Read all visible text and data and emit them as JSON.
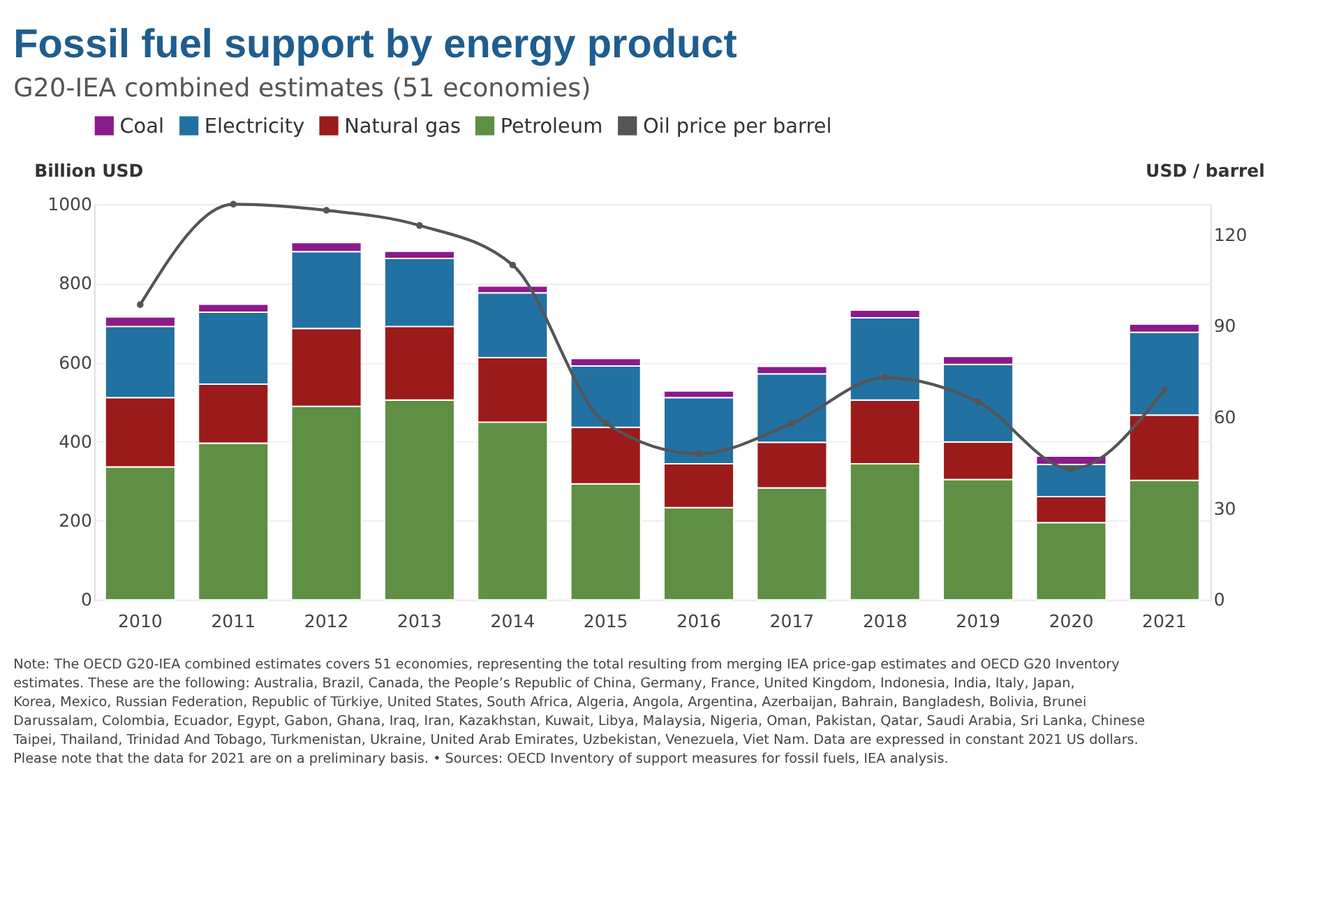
{
  "chart_data": {
    "type": "bar",
    "title": "Fossil fuel support by energy product",
    "subtitle": "G20-IEA combined estimates (51 economies)",
    "ylabel": "Billion USD",
    "y2label": "USD / barrel",
    "categories": [
      "2010",
      "2011",
      "2012",
      "2013",
      "2014",
      "2015",
      "2016",
      "2017",
      "2018",
      "2019",
      "2020",
      "2021"
    ],
    "stacked": true,
    "series": [
      {
        "name": "Petroleum",
        "color": "#5f8f45",
        "values": [
          336,
          396,
          489,
          505,
          449,
          293,
          233,
          283,
          344,
          304,
          195,
          302
        ]
      },
      {
        "name": "Natural gas",
        "color": "#9b1b1b",
        "values": [
          175,
          149,
          197,
          186,
          163,
          143,
          111,
          115,
          161,
          95,
          66,
          165
        ]
      },
      {
        "name": "Electricity",
        "color": "#2271a3",
        "values": [
          180,
          182,
          194,
          172,
          164,
          155,
          167,
          173,
          208,
          196,
          81,
          209
        ]
      },
      {
        "name": "Coal",
        "color": "#8b1a8b",
        "values": [
          24,
          20,
          23,
          18,
          17,
          19,
          17,
          19,
          19,
          20,
          21,
          21
        ]
      },
      {
        "name": "Oil price per barrel",
        "color": "#555555",
        "type": "line",
        "axis": "y2",
        "marker": "circle",
        "values": [
          97,
          130,
          128,
          123,
          110,
          58,
          48,
          58,
          73,
          65,
          43,
          69
        ]
      }
    ],
    "ylim": [
      0,
      1000
    ],
    "yticks": [
      0,
      200,
      400,
      600,
      800,
      1000
    ],
    "y2lim": [
      0,
      130
    ],
    "y2ticks": [
      0,
      30,
      60,
      90,
      120
    ],
    "grid": "y",
    "legend": "top",
    "annotations": [
      "Note: The OECD G20-IEA combined estimates covers 51 economies, representing the total resulting from merging IEA price-gap estimates and OECD G20 Inventory estimates. These are the following: Australia, Brazil, Canada, the People’s Republic of China, Germany, France, United Kingdom, Indonesia, India, Italy, Japan, Korea, Mexico, Russian Federation, Republic of Türkiye, United States, South Africa, Algeria, Angola, Argentina, Azerbaijan, Bahrain, Bangladesh, Bolivia, Brunei Darussalam, Colombia, Ecuador, Egypt, Gabon, Ghana, Iraq, Iran, Kazakhstan, Kuwait, Libya, Malaysia, Nigeria, Oman, Pakistan, Qatar, Saudi Arabia, Sri Lanka, Chinese Taipei, Thailand, Trinidad And Tobago, Turkmenistan, Ukraine, United Arab Emirates, Uzbekistan, Venezuela, Viet Nam. Data are expressed in constant 2021 US dollars. Please note that the data for 2021 are on a preliminary basis. • Sources: OECD Inventory of support measures for fossil fuels, IEA analysis."
    ]
  }
}
